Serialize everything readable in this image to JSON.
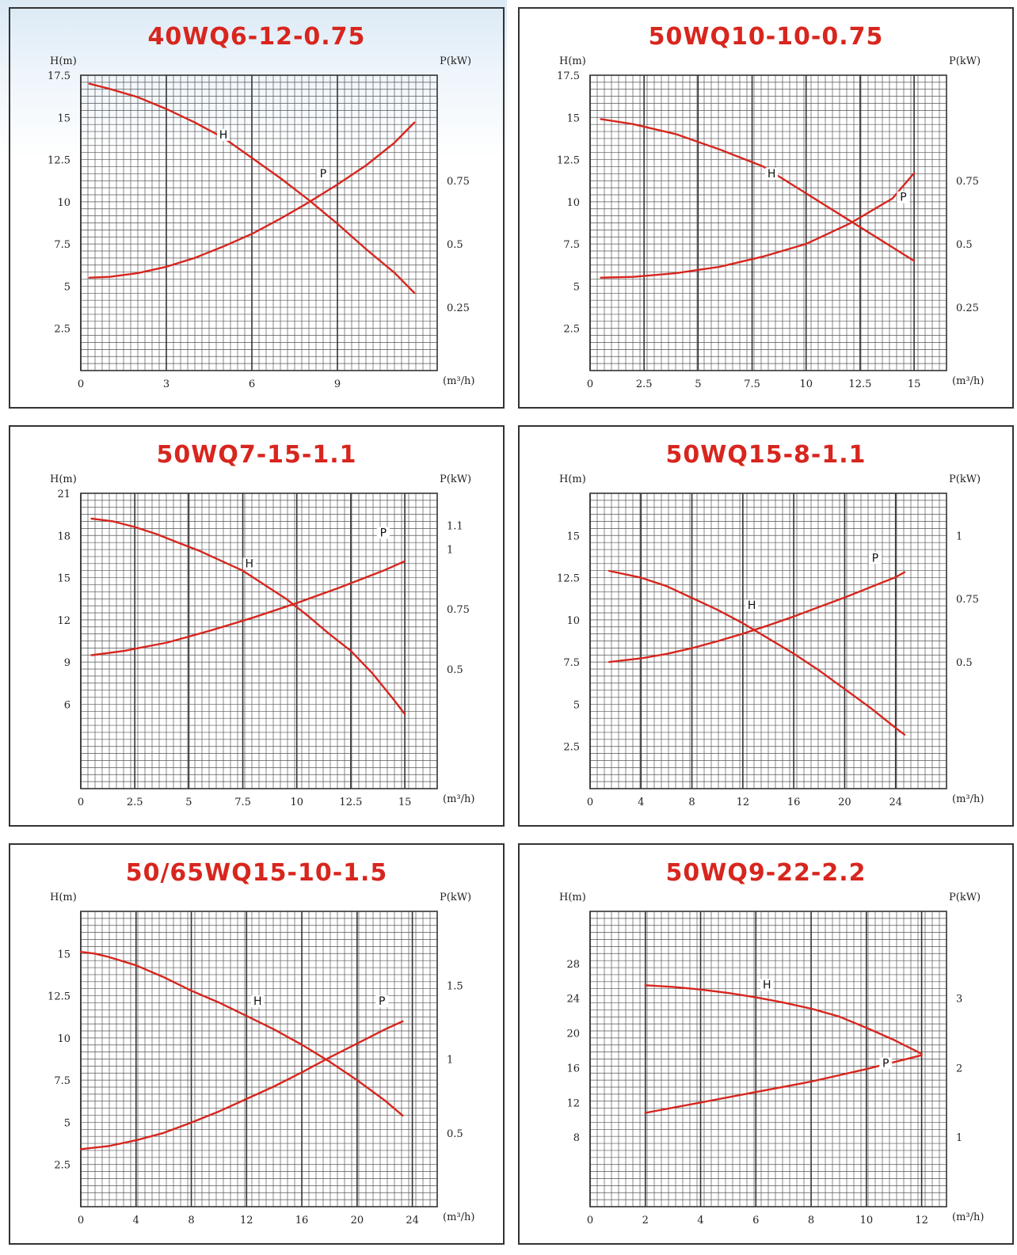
{
  "colors": {
    "curve": "#d7261e",
    "grid": "#333333",
    "minor_grid": "#555555",
    "title": "#d7261e"
  },
  "chart_data": [
    {
      "type": "line",
      "title": "40WQ6-12-0.75",
      "ylabel": "H(m)",
      "y2label": "P(kW)",
      "xunit": "(m³/h)",
      "xlim": [
        0,
        12.5
      ],
      "ylim": [
        0,
        17.5
      ],
      "y2lim": [
        0,
        1.1667
      ],
      "xticks": [
        0,
        3,
        6,
        9
      ],
      "yticks": [
        2.5,
        5,
        7.5,
        10,
        12.5,
        15,
        17.5
      ],
      "y2ticks": [
        0.25,
        0.5,
        0.75
      ],
      "grid": true,
      "series": [
        {
          "name": "H",
          "axis": "left",
          "x": [
            0.3,
            1,
            2,
            3,
            4,
            5,
            6,
            7,
            8,
            9,
            10,
            11,
            11.7
          ],
          "values": [
            17,
            16.7,
            16.2,
            15.5,
            14.7,
            13.8,
            12.6,
            11.4,
            10.1,
            8.7,
            7.2,
            5.8,
            4.6
          ]
        },
        {
          "name": "P",
          "axis": "right",
          "x": [
            0.3,
            1,
            2,
            3,
            4,
            5,
            6,
            7,
            8,
            9,
            10,
            11,
            11.7
          ],
          "values": [
            0.367,
            0.37,
            0.385,
            0.41,
            0.445,
            0.49,
            0.54,
            0.6,
            0.665,
            0.735,
            0.81,
            0.9,
            0.98
          ]
        }
      ],
      "labels": [
        {
          "text": "H",
          "x": 5,
          "y": 13.8
        },
        {
          "text": "P",
          "x": 8.5,
          "y": 11.5
        }
      ]
    },
    {
      "type": "line",
      "title": "50WQ10-10-0.75",
      "ylabel": "H(m)",
      "y2label": "P(kW)",
      "xunit": "(m³/h)",
      "xlim": [
        0,
        16.5
      ],
      "ylim": [
        0,
        17.5
      ],
      "y2lim": [
        0,
        1.1667
      ],
      "xticks": [
        0,
        2.5,
        5,
        7.5,
        10,
        12.5,
        15
      ],
      "yticks": [
        2.5,
        5,
        7.5,
        10,
        12.5,
        15,
        17.5
      ],
      "y2ticks": [
        0.25,
        0.5,
        0.75
      ],
      "grid": true,
      "series": [
        {
          "name": "H",
          "axis": "left",
          "x": [
            0.5,
            2,
            4,
            6,
            8,
            10,
            12,
            14,
            15
          ],
          "values": [
            14.9,
            14.6,
            14,
            13.1,
            12.1,
            10.5,
            8.9,
            7.3,
            6.5
          ]
        },
        {
          "name": "P",
          "axis": "right",
          "x": [
            0.5,
            2,
            4,
            6,
            8,
            10,
            12,
            14,
            15
          ],
          "values": [
            0.367,
            0.37,
            0.385,
            0.41,
            0.45,
            0.5,
            0.58,
            0.68,
            0.78
          ]
        }
      ],
      "labels": [
        {
          "text": "H",
          "x": 8.4,
          "y": 11.5
        },
        {
          "text": "P",
          "x": 14.5,
          "y": 10.1
        }
      ]
    },
    {
      "type": "line",
      "title": "50WQ7-15-1.1",
      "ylabel": "H(m)",
      "y2label": "P(kW)",
      "xunit": "(m³/h)",
      "xlim": [
        0,
        16.5
      ],
      "ylim": [
        0,
        21
      ],
      "y2lim": [
        0,
        1.2333
      ],
      "xticks": [
        0,
        2.5,
        5,
        7.5,
        10,
        12.5,
        15
      ],
      "yticks": [
        6,
        9,
        12,
        15,
        18,
        21
      ],
      "y2ticks": [
        0.5,
        0.75,
        1.0,
        1.1
      ],
      "grid": true,
      "series": [
        {
          "name": "H",
          "axis": "left",
          "x": [
            0.5,
            1.5,
            2.5,
            3.5,
            4.5,
            5.5,
            6.5,
            7.5,
            8.5,
            9.5,
            10.5,
            11.5,
            12.5,
            13.5,
            14.5,
            15
          ],
          "values": [
            19.2,
            19,
            18.6,
            18.1,
            17.5,
            16.9,
            16.2,
            15.5,
            14.5,
            13.5,
            12.3,
            11,
            9.8,
            8.2,
            6.3,
            5.3
          ]
        },
        {
          "name": "P",
          "axis": "right",
          "x": [
            0.5,
            2,
            4,
            6,
            8,
            10,
            12,
            14,
            15
          ],
          "values": [
            0.557,
            0.575,
            0.61,
            0.66,
            0.715,
            0.775,
            0.84,
            0.91,
            0.95
          ]
        }
      ],
      "labels": [
        {
          "text": "H",
          "x": 7.8,
          "y": 15.8
        },
        {
          "text": "P",
          "x": 14,
          "y": 18
        }
      ]
    },
    {
      "type": "line",
      "title": "50WQ15-8-1.1",
      "ylabel": "H(m)",
      "y2label": "P(kW)",
      "xunit": "(m³/h)",
      "xlim": [
        0,
        28
      ],
      "ylim": [
        0,
        17.5
      ],
      "y2lim": [
        0,
        1.1667
      ],
      "xticks": [
        0,
        4,
        8,
        12,
        16,
        20,
        24
      ],
      "yticks": [
        2.5,
        5,
        7.5,
        10,
        12.5,
        15
      ],
      "y2ticks": [
        0.5,
        0.75,
        1.0
      ],
      "grid": true,
      "series": [
        {
          "name": "H",
          "axis": "left",
          "x": [
            1.5,
            4,
            6,
            8,
            10,
            12,
            14,
            16,
            18,
            20,
            22,
            24,
            24.7
          ],
          "values": [
            12.9,
            12.5,
            12,
            11.3,
            10.6,
            9.8,
            8.9,
            8,
            7,
            5.9,
            4.8,
            3.6,
            3.2
          ]
        },
        {
          "name": "P",
          "axis": "right",
          "x": [
            1.5,
            4,
            6,
            8,
            10,
            12,
            14,
            16,
            18,
            20,
            22,
            24,
            24.7
          ],
          "values": [
            0.5,
            0.515,
            0.532,
            0.555,
            0.582,
            0.612,
            0.645,
            0.68,
            0.718,
            0.755,
            0.795,
            0.835,
            0.855
          ]
        }
      ],
      "labels": [
        {
          "text": "H",
          "x": 12.7,
          "y": 10.7
        },
        {
          "text": "P",
          "x": 22.4,
          "y": 13.5
        }
      ]
    },
    {
      "type": "line",
      "title": "50/65WQ15-10-1.5",
      "ylabel": "H(m)",
      "y2label": "P(kW)",
      "xunit": "(m³/h)",
      "xlim": [
        0,
        25.8
      ],
      "ylim": [
        0,
        17.5
      ],
      "y2lim": [
        0,
        2.0
      ],
      "xticks": [
        0,
        4,
        8,
        12,
        16,
        20,
        24
      ],
      "yticks": [
        2.5,
        5,
        7.5,
        10,
        12.5,
        15
      ],
      "y2ticks": [
        0.5,
        1.0,
        1.5
      ],
      "grid": true,
      "series": [
        {
          "name": "H",
          "axis": "left",
          "x": [
            0,
            1,
            2,
            4,
            6,
            8,
            10,
            12,
            14,
            16,
            18,
            20,
            22,
            23.3
          ],
          "values": [
            15.1,
            15,
            14.8,
            14.3,
            13.6,
            12.8,
            12.1,
            11.3,
            10.5,
            9.6,
            8.6,
            7.5,
            6.3,
            5.4
          ]
        },
        {
          "name": "P",
          "axis": "right",
          "x": [
            0,
            2,
            4,
            6,
            8,
            10,
            12,
            14,
            16,
            18,
            20,
            22,
            23.3
          ],
          "values": [
            0.39,
            0.41,
            0.45,
            0.5,
            0.57,
            0.645,
            0.73,
            0.815,
            0.91,
            1.01,
            1.105,
            1.2,
            1.255
          ]
        }
      ],
      "labels": [
        {
          "text": "H",
          "x": 12.8,
          "y": 12
        },
        {
          "text": "P",
          "x": 21.8,
          "y": 12
        }
      ]
    },
    {
      "type": "line",
      "title": "50WQ9-22-2.2",
      "ylabel": "H(m)",
      "y2label": "P(kW)",
      "xunit": "(m³/h)",
      "xlim": [
        0,
        12.9
      ],
      "ylim": [
        0,
        34
      ],
      "y2lim": [
        0,
        4.25
      ],
      "xticks": [
        0,
        2,
        4,
        6,
        8,
        10,
        12
      ],
      "yticks": [
        8,
        12,
        16,
        20,
        24,
        28
      ],
      "y2ticks": [
        1,
        2,
        3
      ],
      "grid": true,
      "series": [
        {
          "name": "H",
          "axis": "left",
          "x": [
            2,
            3,
            4,
            5,
            6,
            7,
            8,
            9,
            10,
            11,
            12
          ],
          "values": [
            25.5,
            25.3,
            25.0,
            24.6,
            24.1,
            23.5,
            22.8,
            21.9,
            20.6,
            19.2,
            17.6
          ]
        },
        {
          "name": "P",
          "axis": "right",
          "x": [
            2,
            4,
            6,
            8,
            10,
            11,
            12
          ],
          "values": [
            1.35,
            1.5,
            1.65,
            1.8,
            1.98,
            2.08,
            2.18
          ]
        }
      ],
      "labels": [
        {
          "text": "H",
          "x": 6.4,
          "y": 25.2
        },
        {
          "text": "P",
          "x": 10.7,
          "y": 16.2
        }
      ]
    }
  ]
}
